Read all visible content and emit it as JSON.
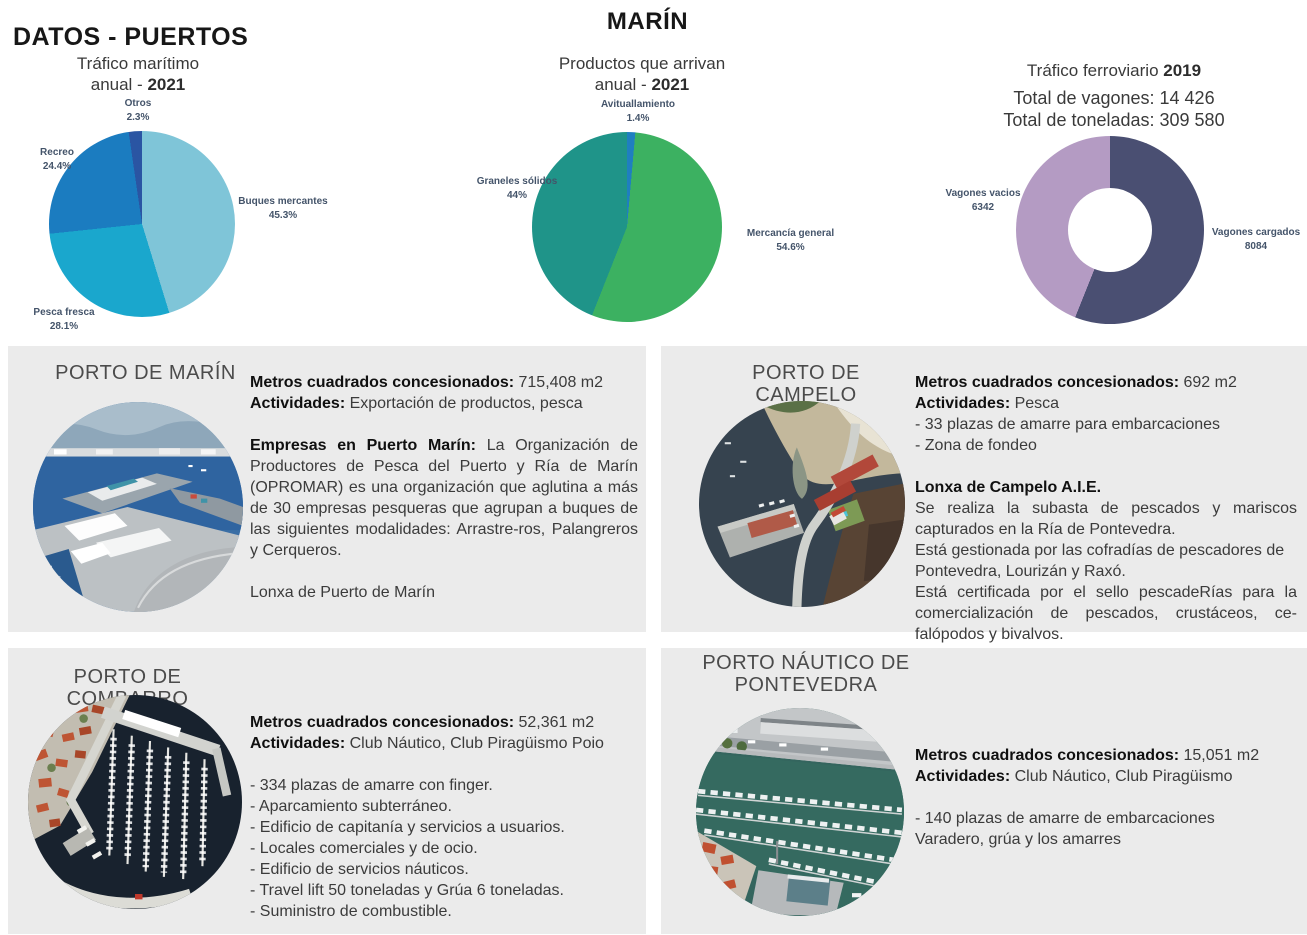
{
  "page": {
    "title": "DATOS - PUERTOS",
    "location": "MARÍN"
  },
  "chart_data": [
    {
      "type": "pie",
      "title": "Tráfico marítimo",
      "subtitle_prefix": "anual - ",
      "subtitle_year": "2021",
      "legend_position": "outside-labels",
      "start_angle_deg": 0,
      "direction": "clockwise",
      "slices": [
        {
          "label": "Buques mercantes",
          "value": 45.3,
          "display": "45.3%",
          "color": "#7fc5d8"
        },
        {
          "label": "Pesca fresca",
          "value": 28.1,
          "display": "28.1%",
          "color": "#1aa7cd"
        },
        {
          "label": "Recreo",
          "value": 24.4,
          "display": "24.4%",
          "color": "#1b7cc0"
        },
        {
          "label": "Otros",
          "value": 2.3,
          "display": "2.3%",
          "color": "#2a55a3"
        }
      ]
    },
    {
      "type": "pie",
      "title": "Productos que arrivan",
      "subtitle_prefix": "anual - ",
      "subtitle_year": "2021",
      "legend_position": "outside-labels",
      "start_angle_deg": 0,
      "direction": "clockwise",
      "slices": [
        {
          "label": "Avituallamiento",
          "value": 1.4,
          "display": "1.4%",
          "color": "#1f7fc0"
        },
        {
          "label": "Mercancía general",
          "value": 54.6,
          "display": "54.6%",
          "color": "#3cb161"
        },
        {
          "label": "Graneles sólidos",
          "value": 44,
          "display": "44%",
          "color": "#1f9489"
        }
      ]
    },
    {
      "type": "donut",
      "title_prefix": "Tráfico ferroviario ",
      "title_year": "2019",
      "totals": {
        "line1": "Total de vagones: 14 426",
        "line2": "Total de toneladas: 309 580"
      },
      "legend_position": "outside-labels",
      "start_angle_deg": 0,
      "direction": "clockwise",
      "slices": [
        {
          "label": "Vagones cargados",
          "value": 8084,
          "display": "8084",
          "color": "#4a4f72"
        },
        {
          "label": "Vagones vacios",
          "value": 6342,
          "display": "6342",
          "color": "#b49bc3"
        }
      ]
    }
  ],
  "cards": [
    {
      "title": "PORTO DE MARÍN",
      "photo": "marin-aerial-photo",
      "lines": [
        {
          "bold": "Metros cuadrados concesionados:",
          "text": " 715,408 m2"
        },
        {
          "bold": "Actividades:",
          "text": " Exportación de productos, pesca"
        },
        {
          "bold": "Empresas en Puerto Marín:",
          "text": " La Organización de Productores de Pesca del Puerto y Ría de Marín (OPROMAR) es una organización que aglutina a más de 30 empresas pesqueras que agrupan a buques de las siguientes modalidades: Arrastre-ros, Palangreros y Cerqueros.",
          "gap": true,
          "justify": true
        },
        {
          "text": "Lonxa de Puerto de Marín",
          "gap": true
        }
      ]
    },
    {
      "title": "PORTO DE CAMPELO",
      "photo": "campelo-aerial-photo",
      "lines": [
        {
          "bold": "Metros cuadrados concesionados:",
          "text": " 692 m2"
        },
        {
          "bold": "Actividades:",
          "text": " Pesca"
        },
        {
          "text": "- 33 plazas de amarre para embarcaciones"
        },
        {
          "text": "- Zona de fondeo"
        },
        {
          "bold": "Lonxa de Campelo A.I.E.",
          "gap": true
        },
        {
          "text": "Se realiza la subasta de pescados y mariscos capturados en la Ría de Pontevedra.",
          "justify": true
        },
        {
          "text": "Está gestionada por las cofradías de pescadores de Pontevedra, Lourizán y Raxó."
        },
        {
          "text": "Está certificada por el sello pescadeRías para la comercialización de pescados, crustáceos, ce-falópodos y bivalvos.",
          "justify": true
        }
      ]
    },
    {
      "title": "PORTO DE COMBARRO",
      "photo": "combarro-aerial-photo",
      "lines": [
        {
          "bold": "Metros cuadrados concesionados:",
          "text": " 52,361 m2"
        },
        {
          "bold": "Actividades:",
          "text": " Club Náutico, Club Piragüismo Poio"
        },
        {
          "text": "- 334 plazas de amarre con finger.",
          "gap": true
        },
        {
          "text": "- Aparcamiento subterráneo."
        },
        {
          "text": "- Edificio de capitanía y servicios a usuarios."
        },
        {
          "text": "- Locales comerciales y de ocio."
        },
        {
          "text": "- Edificio de servicios náuticos."
        },
        {
          "text": "- Travel lift 50 toneladas y Grúa 6 toneladas."
        },
        {
          "text": "- Suministro de combustible."
        }
      ]
    },
    {
      "title": "PORTO NÁUTICO DE PONTEVEDRA",
      "title_lines": [
        "PORTO NÁUTICO DE",
        "PONTEVEDRA"
      ],
      "photo": "pontevedra-aerial-photo",
      "lines": [
        {
          "bold": "Metros cuadrados concesionados:",
          "text": " 15,051 m2"
        },
        {
          "bold": "Actividades:",
          "text": " Club Náutico, Club Piragüismo"
        },
        {
          "text": "- 140 plazas de amarre de embarcaciones",
          "gap": true
        },
        {
          "text": "Varadero, grúa y los amarres"
        }
      ]
    }
  ]
}
